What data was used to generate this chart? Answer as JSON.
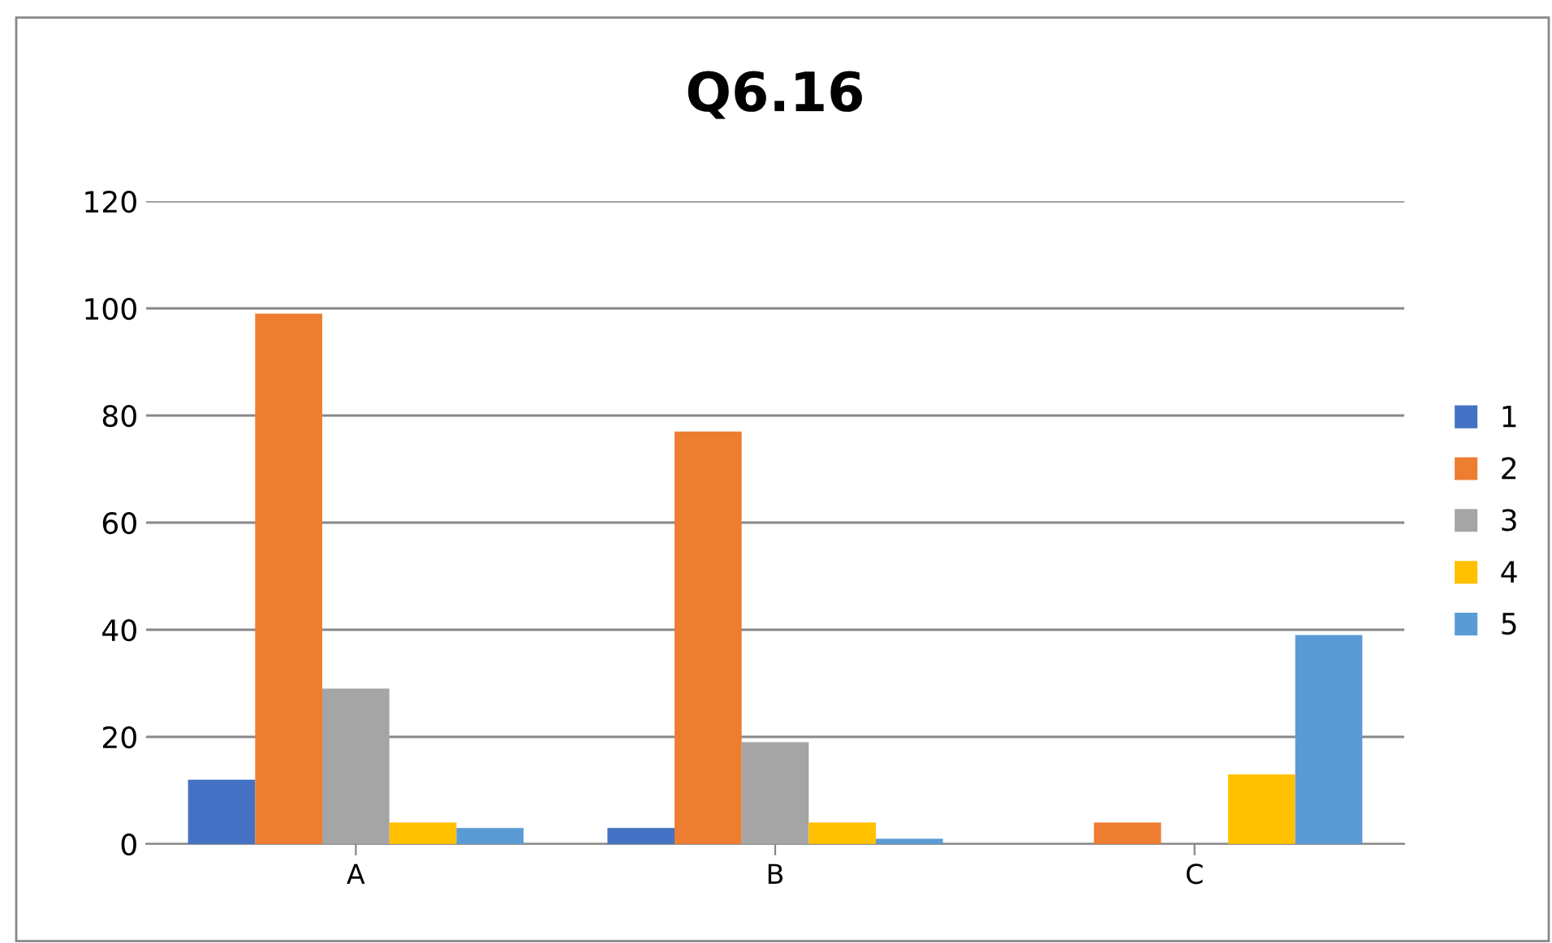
{
  "chart_data": {
    "type": "bar",
    "title": "Q6.16",
    "categories": [
      "A",
      "B",
      "C"
    ],
    "series": [
      {
        "name": "1",
        "color": "#4472c4",
        "values": [
          12,
          3,
          0
        ]
      },
      {
        "name": "2",
        "color": "#ed7d31",
        "values": [
          99,
          77,
          4
        ]
      },
      {
        "name": "3",
        "color": "#a5a5a5",
        "values": [
          29,
          19,
          0
        ]
      },
      {
        "name": "4",
        "color": "#ffc000",
        "values": [
          4,
          4,
          13
        ]
      },
      {
        "name": "5",
        "color": "#5b9bd5",
        "values": [
          3,
          1,
          39
        ]
      }
    ],
    "ylim": [
      0,
      120
    ],
    "yticks": [
      0,
      20,
      40,
      60,
      80,
      100,
      120
    ],
    "grid": "y",
    "legend": "right"
  }
}
